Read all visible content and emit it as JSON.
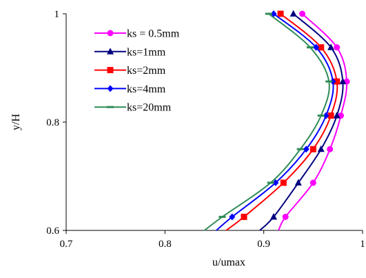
{
  "chart_data": {
    "type": "line",
    "title": "",
    "xlabel": "u/umax",
    "ylabel": "y/H",
    "xlim": [
      0.7,
      1.0
    ],
    "ylim": [
      0.6,
      1.0
    ],
    "x_ticks": [
      0.7,
      0.8,
      0.9,
      1.0
    ],
    "x_tick_labels": [
      "0.7",
      "0.8",
      "0.9",
      "1"
    ],
    "y_ticks": [
      0.6,
      0.8,
      1.0
    ],
    "y_tick_labels": [
      "0.6",
      "0.8",
      "1"
    ],
    "grid": false,
    "legend_position": "top-left",
    "series": [
      {
        "name": "ks = 0.5mm",
        "color": "#ff00ff",
        "marker": "circle",
        "points": [
          [
            0.915,
            0.6
          ],
          [
            0.922,
            0.625
          ],
          [
            0.95,
            0.688
          ],
          [
            0.967,
            0.75
          ],
          [
            0.978,
            0.812
          ],
          [
            0.984,
            0.875
          ],
          [
            0.974,
            0.938
          ],
          [
            0.939,
            1.0
          ]
        ]
      },
      {
        "name": "ks=1mm",
        "color": "#000080",
        "marker": "triangle",
        "points": [
          [
            0.896,
            0.6
          ],
          [
            0.91,
            0.625
          ],
          [
            0.935,
            0.688
          ],
          [
            0.958,
            0.75
          ],
          [
            0.974,
            0.812
          ],
          [
            0.98,
            0.875
          ],
          [
            0.968,
            0.938
          ],
          [
            0.93,
            1.0
          ]
        ]
      },
      {
        "name": "ks=2mm",
        "color": "#ff0000",
        "marker": "square",
        "points": [
          [
            0.862,
            0.6
          ],
          [
            0.88,
            0.625
          ],
          [
            0.92,
            0.688
          ],
          [
            0.95,
            0.75
          ],
          [
            0.968,
            0.812
          ],
          [
            0.974,
            0.875
          ],
          [
            0.958,
            0.938
          ],
          [
            0.917,
            1.0
          ]
        ]
      },
      {
        "name": "ks=4mm",
        "color": "#0000ff",
        "marker": "diamond",
        "points": [
          [
            0.852,
            0.6
          ],
          [
            0.868,
            0.625
          ],
          [
            0.912,
            0.688
          ],
          [
            0.943,
            0.75
          ],
          [
            0.963,
            0.812
          ],
          [
            0.97,
            0.875
          ],
          [
            0.953,
            0.938
          ],
          [
            0.91,
            1.0
          ]
        ]
      },
      {
        "name": "ks=20mm",
        "color": "#2e8b57",
        "marker": "dash",
        "points": [
          [
            0.84,
            0.6
          ],
          [
            0.858,
            0.625
          ],
          [
            0.907,
            0.688
          ],
          [
            0.937,
            0.75
          ],
          [
            0.958,
            0.812
          ],
          [
            0.966,
            0.875
          ],
          [
            0.947,
            0.938
          ],
          [
            0.905,
            1.0
          ]
        ]
      }
    ]
  }
}
